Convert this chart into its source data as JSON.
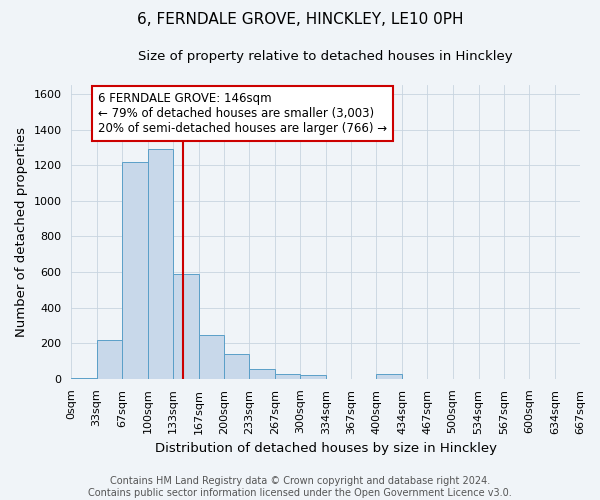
{
  "title": "6, FERNDALE GROVE, HINCKLEY, LE10 0PH",
  "subtitle": "Size of property relative to detached houses in Hinckley",
  "xlabel": "Distribution of detached houses by size in Hinckley",
  "ylabel": "Number of detached properties",
  "footer_line1": "Contains HM Land Registry data © Crown copyright and database right 2024.",
  "footer_line2": "Contains public sector information licensed under the Open Government Licence v3.0.",
  "bin_edges": [
    0,
    33,
    67,
    100,
    133,
    167,
    200,
    233,
    267,
    300,
    334,
    367,
    400,
    434,
    467,
    500,
    534,
    567,
    600,
    634,
    667
  ],
  "bar_heights": [
    5,
    220,
    1220,
    1290,
    590,
    245,
    140,
    55,
    25,
    20,
    0,
    0,
    25,
    0,
    0,
    0,
    0,
    0,
    0,
    0
  ],
  "bar_color": "#c8d8ea",
  "bar_edge_color": "#5a9fc8",
  "property_value": 146,
  "red_line_color": "#cc0000",
  "annotation_text_line1": "6 FERNDALE GROVE: 146sqm",
  "annotation_text_line2": "← 79% of detached houses are smaller (3,003)",
  "annotation_text_line3": "20% of semi-detached houses are larger (766) →",
  "annotation_box_edge_color": "#cc0000",
  "ylim": [
    0,
    1650
  ],
  "yticks": [
    0,
    200,
    400,
    600,
    800,
    1000,
    1200,
    1400,
    1600
  ],
  "bg_color": "#f0f4f8",
  "grid_color": "#c8d4e0",
  "title_fontsize": 11,
  "subtitle_fontsize": 9.5,
  "axis_label_fontsize": 9.5,
  "tick_fontsize": 8,
  "annotation_fontsize": 8.5,
  "footer_fontsize": 7
}
